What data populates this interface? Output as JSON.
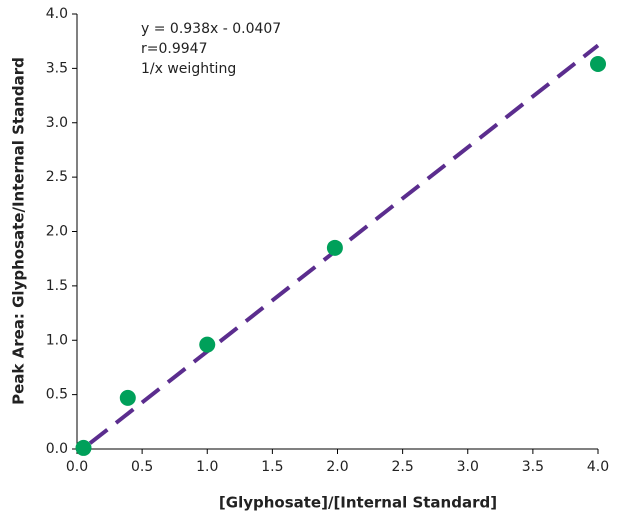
{
  "chart_data": {
    "type": "scatter",
    "xlabel": "[Glyphosate]/[Internal Standard]",
    "ylabel": "Peak Area: Glyphosate/Internal Standard",
    "annotations": [
      "y = 0.938x - 0.0407",
      "r=0.9947",
      "1/x weighting"
    ],
    "x": [
      0.05,
      0.39,
      1.0,
      1.98,
      4.0
    ],
    "series": [
      {
        "color": "#00a05a",
        "values": [
          0.01,
          0.47,
          0.96,
          1.85,
          3.54
        ]
      }
    ],
    "fit_line": {
      "x": [
        0.1,
        4.0
      ],
      "values": [
        0.053,
        3.711
      ],
      "color": "#5b2d8e",
      "dashed": true
    },
    "xlim": [
      0,
      4.0
    ],
    "ylim": [
      0,
      4.0
    ],
    "xticks": [
      {
        "value": 0,
        "label": "0.0"
      },
      0.5,
      {
        "value": 1,
        "label": "1.0"
      },
      1.5,
      {
        "value": 2,
        "label": "2.0"
      },
      2.5,
      {
        "value": 3,
        "label": "3.0"
      },
      3.5,
      {
        "value": 4,
        "label": "4.0"
      }
    ],
    "yticks": [
      {
        "value": 0,
        "label": "0.0"
      },
      0.5,
      {
        "value": 1,
        "label": "1.0"
      },
      1.5,
      {
        "value": 2,
        "label": "2.0"
      },
      2.5,
      {
        "value": 3,
        "label": "3.0"
      },
      3.5,
      {
        "value": 4,
        "label": "4.0"
      }
    ],
    "grid": false
  }
}
